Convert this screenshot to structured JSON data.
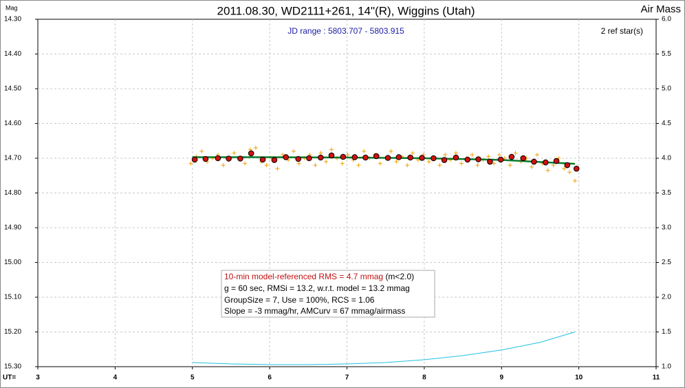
{
  "chart_data": {
    "type": "scatter",
    "title": "2011.08.30, WD2111+261, 14\"(R), Wiggins (Utah)",
    "subtitle": "JD range : 5803.707 - 5803.915",
    "ref_stars": "2 ref star(s)",
    "x_label": "UT=",
    "y_label": "Mag",
    "y2_label": "Air Mass",
    "y_inverted": true,
    "grid": true,
    "annotation": {
      "rms": "10-min model-referenced RMS = 4.7 mmag",
      "rms_note": "(m<2.0)",
      "lines": [
        "g = 60 sec, RMSi = 13.2, w.r.t. model = 13.2 mmag",
        "GroupSize = 7, Use = 100%, RCS = 1.06",
        "Slope = -3 mmag/hr, AMCurv = 67 mmag/airmass"
      ]
    },
    "xlim": [
      3,
      11
    ],
    "xticks": [
      3,
      4,
      5,
      6,
      7,
      8,
      9,
      10,
      11
    ],
    "ylim": [
      14.3,
      15.3
    ],
    "yticks": [
      {
        "value": 14.3,
        "label": "14.30"
      },
      {
        "value": 14.4,
        "label": "14.40"
      },
      {
        "value": 14.5,
        "label": "14.50"
      },
      {
        "value": 14.6,
        "label": "14.60"
      },
      {
        "value": 14.7,
        "label": "14.70"
      },
      {
        "value": 14.8,
        "label": "14.80"
      },
      {
        "value": 14.9,
        "label": "14.90"
      },
      {
        "value": 15.0,
        "label": "15.00"
      },
      {
        "value": 15.1,
        "label": "15.10"
      },
      {
        "value": 15.2,
        "label": "15.20"
      },
      {
        "value": 15.3,
        "label": "15.30"
      }
    ],
    "y2lim": [
      6,
      1
    ],
    "y2ticks": [
      {
        "value": 6,
        "label": "6.0"
      },
      {
        "value": 5.5,
        "label": "5.5"
      },
      {
        "value": 5,
        "label": "5.0"
      },
      {
        "value": 4.5,
        "label": "4.5"
      },
      {
        "value": 4,
        "label": "4.0"
      },
      {
        "value": 3.5,
        "label": "3.5"
      },
      {
        "value": 3,
        "label": "3.0"
      },
      {
        "value": 2.5,
        "label": "2.5"
      },
      {
        "value": 2,
        "label": "2.0"
      },
      {
        "value": 1.5,
        "label": "1.5"
      },
      {
        "value": 1,
        "label": "1.0"
      }
    ],
    "series": [
      {
        "style": "plus",
        "color": "#f0a000",
        "x": [
          4.98,
          5.05,
          5.12,
          5.19,
          5.26,
          5.33,
          5.4,
          5.47,
          5.54,
          5.61,
          5.68,
          5.75,
          5.82,
          5.89,
          5.96,
          6.03,
          6.1,
          6.17,
          6.24,
          6.31,
          6.38,
          6.45,
          6.52,
          6.59,
          6.66,
          6.73,
          6.8,
          6.87,
          6.94,
          7.01,
          7.08,
          7.15,
          7.22,
          7.29,
          7.36,
          7.43,
          7.5,
          7.57,
          7.64,
          7.71,
          7.78,
          7.85,
          7.92,
          7.99,
          8.06,
          8.13,
          8.2,
          8.27,
          8.34,
          8.41,
          8.48,
          8.55,
          8.62,
          8.69,
          8.76,
          8.83,
          8.9,
          8.97,
          9.04,
          9.11,
          9.18,
          9.25,
          9.32,
          9.39,
          9.46,
          9.53,
          9.6,
          9.67,
          9.74,
          9.81,
          9.88,
          9.95
        ],
        "values": [
          14.715,
          14.695,
          14.68,
          14.71,
          14.7,
          14.69,
          14.72,
          14.705,
          14.685,
          14.7,
          14.715,
          14.675,
          14.67,
          14.71,
          14.72,
          14.7,
          14.73,
          14.69,
          14.705,
          14.68,
          14.715,
          14.7,
          14.69,
          14.72,
          14.685,
          14.71,
          14.675,
          14.7,
          14.715,
          14.69,
          14.705,
          14.72,
          14.68,
          14.7,
          14.69,
          14.715,
          14.7,
          14.68,
          14.71,
          14.695,
          14.72,
          14.685,
          14.705,
          14.69,
          14.71,
          14.7,
          14.72,
          14.69,
          14.705,
          14.685,
          14.715,
          14.7,
          14.69,
          14.72,
          14.705,
          14.695,
          14.715,
          14.69,
          14.7,
          14.72,
          14.685,
          14.71,
          14.7,
          14.725,
          14.69,
          14.715,
          14.735,
          14.72,
          14.7,
          14.73,
          14.74,
          14.765
        ]
      },
      {
        "style": "line",
        "color": "#0a7a2a",
        "x": [
          5.0,
          6.0,
          7.0,
          8.0,
          9.0,
          9.95
        ],
        "values": [
          14.697,
          14.697,
          14.698,
          14.7,
          14.705,
          14.716
        ]
      },
      {
        "style": "circle",
        "color": "#d01010",
        "x": [
          5.03,
          5.17,
          5.33,
          5.47,
          5.62,
          5.76,
          5.91,
          6.06,
          6.21,
          6.37,
          6.51,
          6.66,
          6.8,
          6.95,
          7.1,
          7.24,
          7.38,
          7.53,
          7.67,
          7.82,
          7.97,
          8.12,
          8.26,
          8.41,
          8.56,
          8.7,
          8.85,
          8.99,
          9.13,
          9.28,
          9.42,
          9.57,
          9.71,
          9.85,
          9.97
        ],
        "values": [
          14.704,
          14.702,
          14.7,
          14.701,
          14.701,
          14.686,
          14.704,
          14.705,
          14.697,
          14.702,
          14.7,
          14.698,
          14.692,
          14.696,
          14.697,
          14.698,
          14.694,
          14.699,
          14.697,
          14.698,
          14.699,
          14.7,
          14.705,
          14.698,
          14.704,
          14.703,
          14.71,
          14.704,
          14.696,
          14.7,
          14.71,
          14.712,
          14.708,
          14.72,
          14.73
        ]
      },
      {
        "style": "line",
        "color": "#20c0e0",
        "axis": "y2",
        "x": [
          5.0,
          5.5,
          6.0,
          6.5,
          7.0,
          7.5,
          8.0,
          8.5,
          9.0,
          9.5,
          9.95
        ],
        "values": [
          1.06,
          1.04,
          1.03,
          1.03,
          1.04,
          1.06,
          1.1,
          1.16,
          1.24,
          1.35,
          1.5
        ]
      }
    ]
  }
}
